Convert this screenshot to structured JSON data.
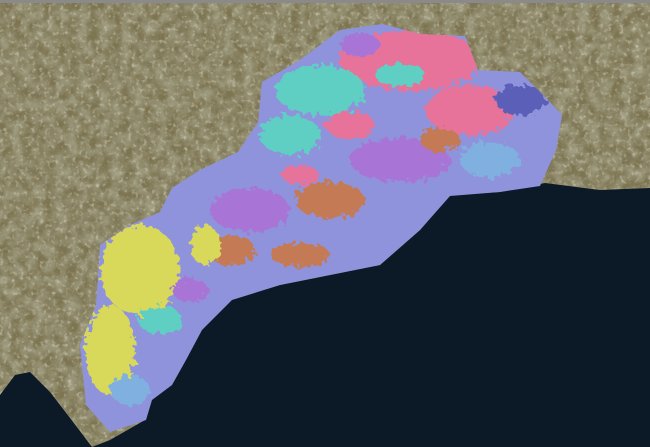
{
  "map": {
    "basemap": "satellite",
    "colors": {
      "land": "#7d7552",
      "land_dark": "#4f5a36",
      "land_light": "#a89e80",
      "sea": "#0c1a28",
      "classes": [
        "#e8739a",
        "#5fcfc3",
        "#8f93dc",
        "#a875d6",
        "#c47a55",
        "#d8d85a",
        "#5b5fb8",
        "#7fb0e0"
      ]
    }
  }
}
